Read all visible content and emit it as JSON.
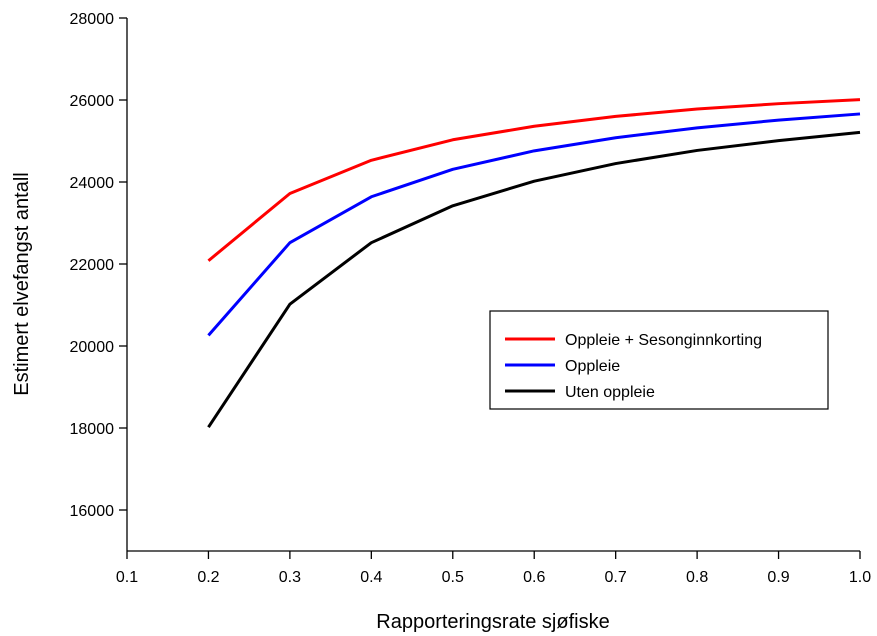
{
  "chart_data": {
    "type": "line",
    "title": "",
    "xlabel": "Rapporteringsrate sjøfiske",
    "ylabel": "Estimert elvefangst antall",
    "xlim": [
      0.1,
      1.0
    ],
    "ylim": [
      15000,
      28000
    ],
    "xticks": [
      "0.1",
      "0.2",
      "0.3",
      "0.4",
      "0.5",
      "0.6",
      "0.7",
      "0.8",
      "0.9",
      "1.0"
    ],
    "yticks": [
      "16000",
      "18000",
      "20000",
      "22000",
      "24000",
      "26000",
      "28000"
    ],
    "grid": false,
    "legend_position": "center-right",
    "x": [
      0.2,
      0.3,
      0.4,
      0.5,
      0.6,
      0.7,
      0.8,
      0.9,
      1.0
    ],
    "series": [
      {
        "name": "Oppleie + Sesonginnkorting",
        "color": "#ff0000",
        "values": [
          22080,
          23720,
          24530,
          25030,
          25360,
          25600,
          25780,
          25910,
          26010
        ]
      },
      {
        "name": "Oppleie",
        "color": "#0000ff",
        "values": [
          20260,
          22520,
          23640,
          24310,
          24760,
          25080,
          25320,
          25510,
          25660
        ]
      },
      {
        "name": "Uten oppleie",
        "color": "#000000",
        "values": [
          18020,
          21020,
          22520,
          23420,
          24020,
          24450,
          24770,
          25010,
          25210
        ]
      }
    ]
  }
}
